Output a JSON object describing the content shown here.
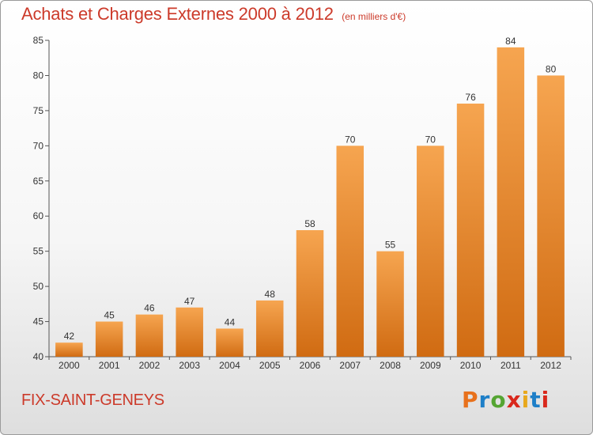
{
  "header": {
    "title": "Achats et Charges Externes 2000 à 2012",
    "subtitle": "(en milliers d'€)"
  },
  "footer": {
    "commune": "FIX-SAINT-GENEYS",
    "logo_letters": [
      "P",
      "r",
      "o",
      "x",
      "i",
      "t",
      "i"
    ],
    "logo_colors": [
      "#e8711c",
      "#1e7fc8",
      "#55a532",
      "#d9281c",
      "#e8a81c",
      "#1e7fc8",
      "#d9281c"
    ]
  },
  "chart_data": {
    "type": "bar",
    "title": "Achats et Charges Externes 2000 à 2012",
    "subtitle": "(en milliers d'€)",
    "xlabel": "",
    "ylabel": "",
    "categories": [
      "2000",
      "2001",
      "2002",
      "2003",
      "2004",
      "2005",
      "2006",
      "2007",
      "2008",
      "2009",
      "2010",
      "2011",
      "2012"
    ],
    "values": [
      42,
      45,
      46,
      47,
      44,
      48,
      58,
      70,
      55,
      70,
      76,
      84,
      80
    ],
    "ylim": [
      40,
      85
    ],
    "yticks": [
      40,
      45,
      50,
      55,
      60,
      65,
      70,
      75,
      80,
      85
    ],
    "grid": false,
    "bar_color_top": "#f6a550",
    "bar_color_bottom": "#d06b12",
    "value_labels": true
  }
}
